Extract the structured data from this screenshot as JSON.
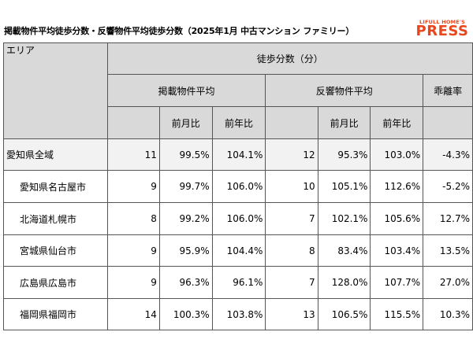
{
  "header": {
    "title": "掲載物件平均徒歩分数・反響物件平均徒歩分数（2025年1月 中古マンション ファミリー）",
    "logo_top": "LIFULL HOME'S",
    "logo_main": "PRESS"
  },
  "table": {
    "area_label": "エリア",
    "walk_minutes_label": "徒歩分数（分）",
    "listed_avg_label": "掲載物件平均",
    "response_avg_label": "反響物件平均",
    "divergence_label": "乖離率",
    "mom_label": "前月比",
    "yoy_label": "前年比",
    "rows": [
      {
        "area": "愛知県全域",
        "listed": "11",
        "listed_mom": "99.5%",
        "listed_yoy": "104.1%",
        "response": "12",
        "response_mom": "95.3%",
        "response_yoy": "103.0%",
        "divergence": "-4.3%"
      },
      {
        "area": "愛知県名古屋市",
        "listed": "9",
        "listed_mom": "99.7%",
        "listed_yoy": "106.0%",
        "response": "10",
        "response_mom": "105.1%",
        "response_yoy": "112.6%",
        "divergence": "-5.2%"
      },
      {
        "area": "北海道札幌市",
        "listed": "8",
        "listed_mom": "99.2%",
        "listed_yoy": "106.0%",
        "response": "7",
        "response_mom": "102.1%",
        "response_yoy": "105.6%",
        "divergence": "12.7%"
      },
      {
        "area": "宮城県仙台市",
        "listed": "9",
        "listed_mom": "95.9%",
        "listed_yoy": "104.4%",
        "response": "8",
        "response_mom": "83.4%",
        "response_yoy": "103.4%",
        "divergence": "13.5%"
      },
      {
        "area": "広島県広島市",
        "listed": "9",
        "listed_mom": "96.3%",
        "listed_yoy": "96.1%",
        "response": "7",
        "response_mom": "128.0%",
        "response_yoy": "107.7%",
        "divergence": "27.0%"
      },
      {
        "area": "福岡県福岡市",
        "listed": "14",
        "listed_mom": "100.3%",
        "listed_yoy": "103.8%",
        "response": "13",
        "response_mom": "106.5%",
        "response_yoy": "115.5%",
        "divergence": "10.3%"
      }
    ]
  }
}
